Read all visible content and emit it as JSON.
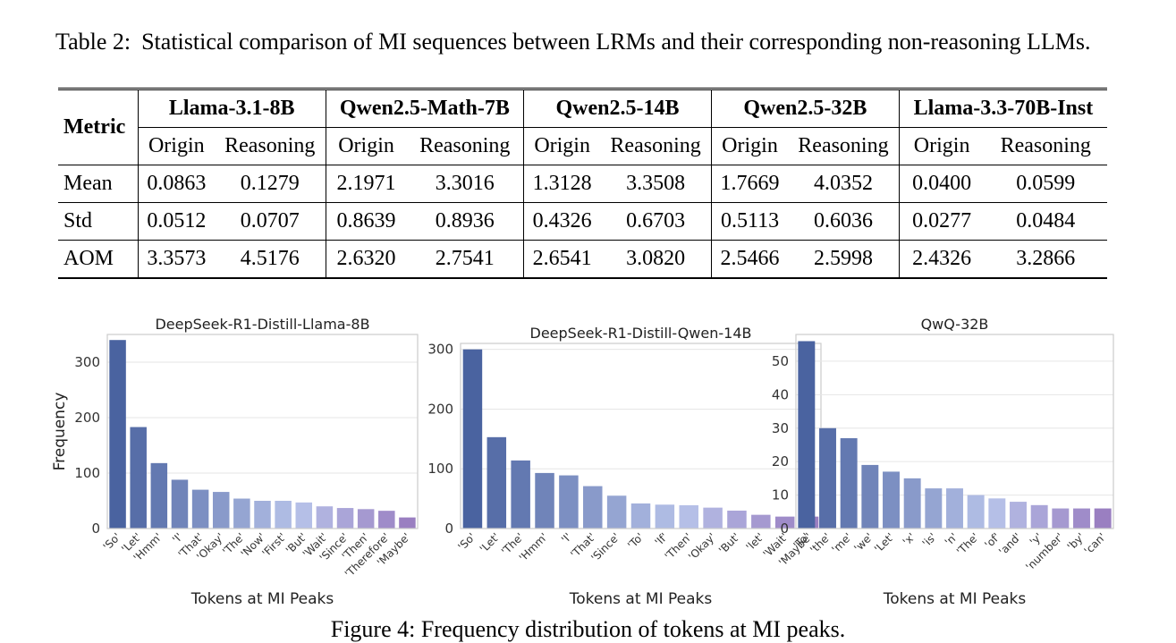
{
  "table_caption": {
    "label": "Table 2:",
    "text": "Statistical comparison of MI sequences between LRMs and their corresponding non-reasoning LLMs."
  },
  "table": {
    "metric_header": "Metric",
    "models": [
      "Llama-3.1-8B",
      "Qwen2.5-Math-7B",
      "Qwen2.5-14B",
      "Qwen2.5-32B",
      "Llama-3.3-70B-Inst"
    ],
    "subheaders": [
      "Origin",
      "Reasoning",
      "Origin",
      "Reasoning",
      "Origin",
      "Reasoning",
      "Origin",
      "Reasoning",
      "Origin",
      "Reasoning"
    ],
    "rows": [
      {
        "metric": "Mean",
        "values": [
          "0.0863",
          "0.1279",
          "2.1971",
          "3.3016",
          "1.3128",
          "3.3508",
          "1.7669",
          "4.0352",
          "0.0400",
          "0.0599"
        ]
      },
      {
        "metric": "Std",
        "values": [
          "0.0512",
          "0.0707",
          "0.8639",
          "0.8936",
          "0.4326",
          "0.6703",
          "0.5113",
          "0.6036",
          "0.0277",
          "0.0484"
        ]
      },
      {
        "metric": "AOM",
        "values": [
          "3.3573",
          "4.5176",
          "2.6320",
          "2.7541",
          "2.6541",
          "3.0820",
          "2.5466",
          "2.5998",
          "2.4326",
          "3.2866"
        ]
      }
    ]
  },
  "chart_data": [
    {
      "type": "bar",
      "title": "DeepSeek-R1-Distill-Llama-8B",
      "xlabel": "Tokens at MI Peaks",
      "ylabel": "Frequency",
      "categories": [
        "'So'",
        "'Let'",
        "'Hmm'",
        "'I'",
        "'That'",
        "'Okay'",
        "'The'",
        "'Now'",
        "'First'",
        "'But'",
        "'Wait'",
        "'Since'",
        "'Then'",
        "'Therefore'",
        "'Maybe'"
      ],
      "values": [
        340,
        183,
        118,
        88,
        70,
        66,
        54,
        50,
        50,
        47,
        40,
        37,
        35,
        32,
        20
      ],
      "ylim": [
        0,
        350
      ],
      "yticks": [
        0,
        100,
        200,
        300
      ],
      "grid": true
    },
    {
      "type": "bar",
      "title": "DeepSeek-R1-Distill-Qwen-14B",
      "xlabel": "Tokens at MI Peaks",
      "ylabel": "",
      "categories": [
        "'So'",
        "'Let'",
        "'The'",
        "'Hmm'",
        "'I'",
        "'That'",
        "'Since'",
        "'To'",
        "'If'",
        "'Then'",
        "'Okay'",
        "'But'",
        "'let'",
        "'Wait'",
        "'Maybe'"
      ],
      "values": [
        300,
        153,
        114,
        93,
        89,
        71,
        55,
        42,
        40,
        39,
        35,
        30,
        23,
        20,
        20
      ],
      "ylim": [
        0,
        310
      ],
      "yticks": [
        0,
        100,
        200,
        300
      ],
      "grid": true
    },
    {
      "type": "bar",
      "title": "QwQ-32B",
      "xlabel": "Tokens at MI Peaks",
      "ylabel": "",
      "categories": [
        "'To'",
        "'the'",
        "'me'",
        "'we'",
        "'Let'",
        "'x'",
        "'is'",
        "'n'",
        "'The'",
        "'of'",
        "'and'",
        "'y'",
        "'number'",
        "'by'",
        "'can'"
      ],
      "values": [
        56,
        30,
        27,
        19,
        17,
        15,
        12,
        12,
        10,
        9,
        8,
        7,
        6,
        6,
        6
      ],
      "ylim": [
        0,
        58
      ],
      "yticks": [
        0,
        10,
        20,
        30,
        40,
        50
      ],
      "grid": true
    }
  ],
  "colors": {
    "bar_start": "#4a63a0",
    "bar_mid": "#b7c3e9",
    "bar_end": "#9a7fc1",
    "grid": "#e6e6e6",
    "frame": "#cccccc",
    "tick_text": "#333333"
  },
  "figure_caption": "Figure 4: Frequency distribution of tokens at MI peaks."
}
